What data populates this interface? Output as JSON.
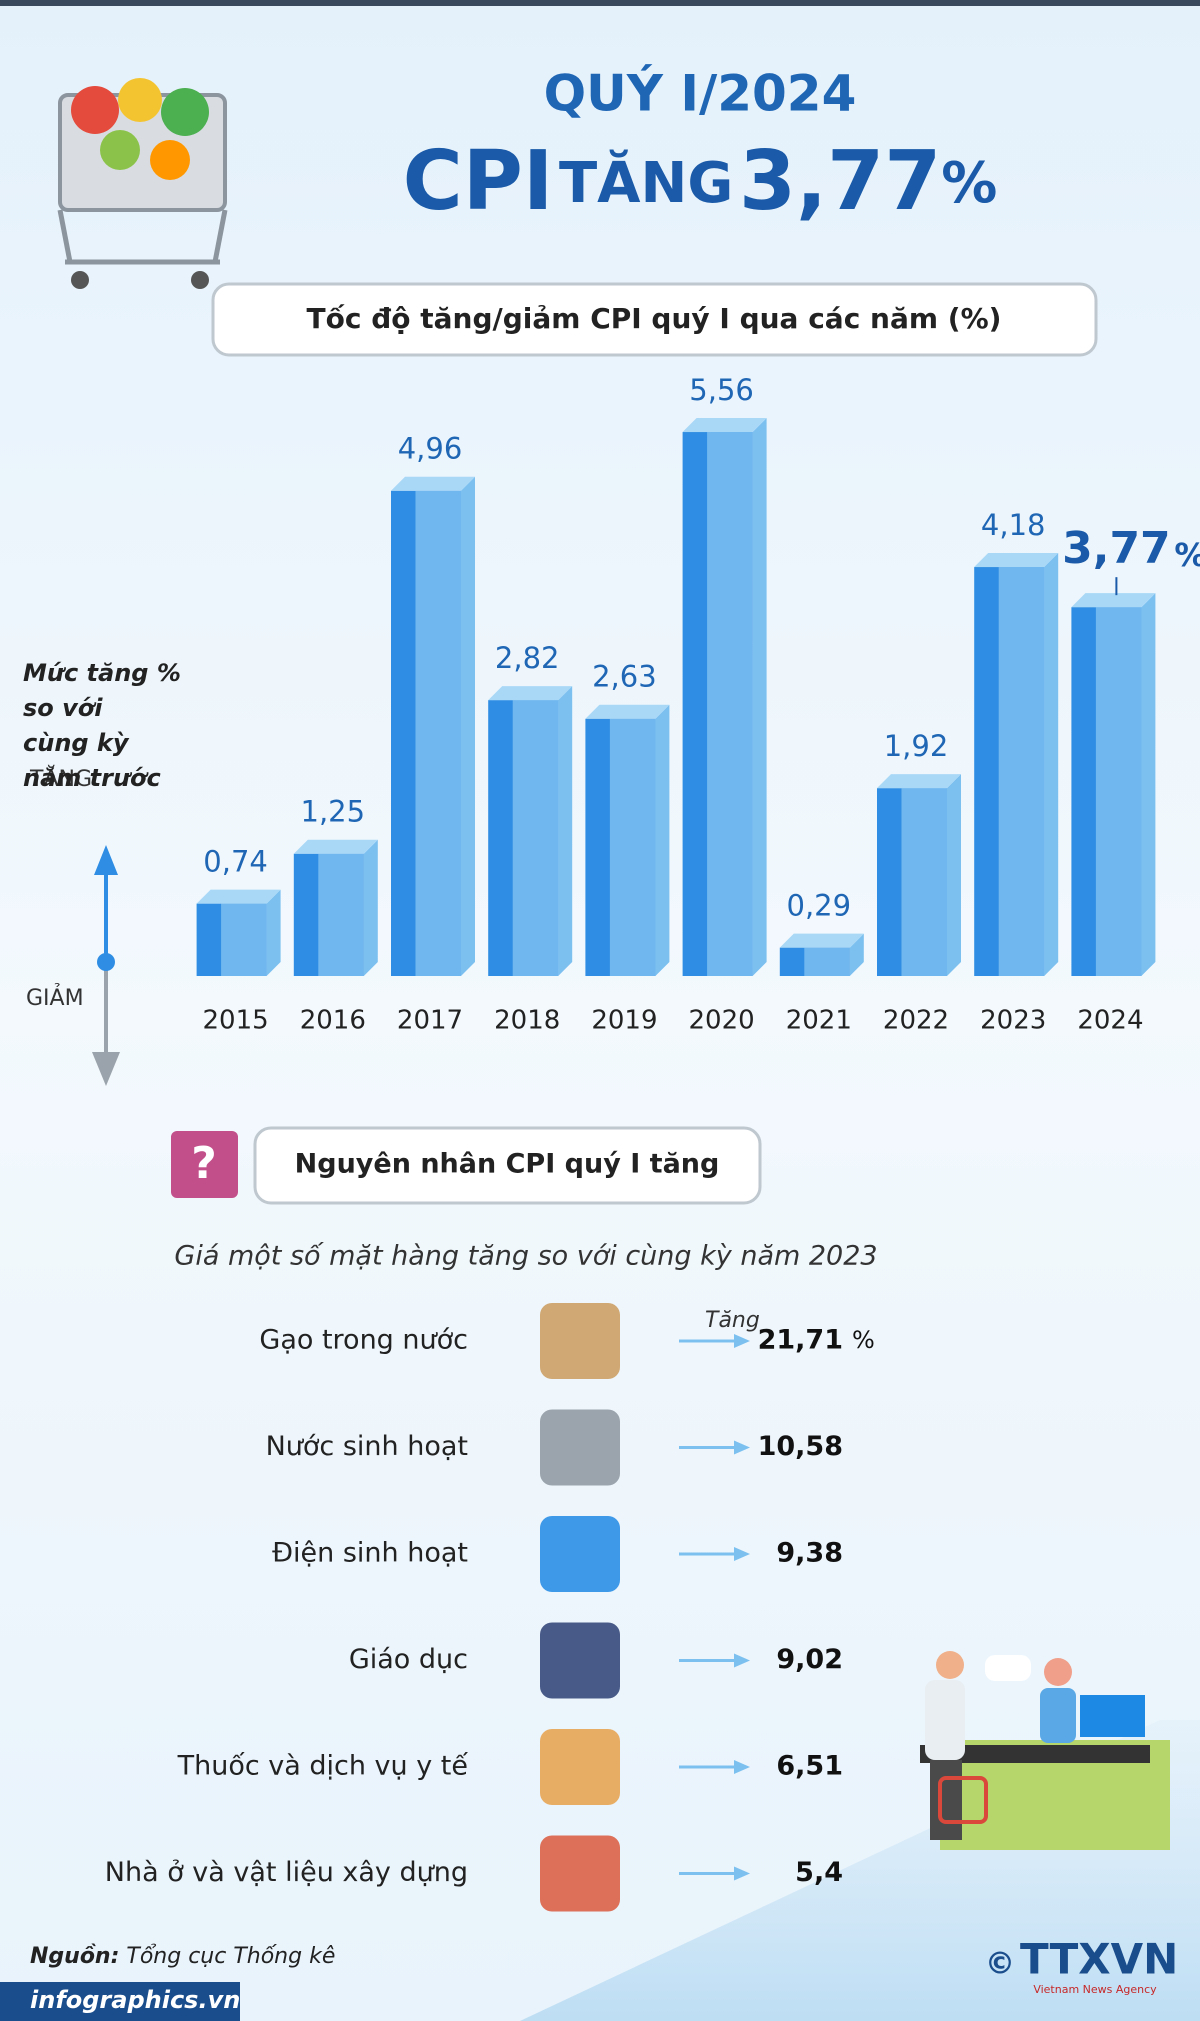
{
  "header": {
    "period": "QUÝ I/2024",
    "headline_main": "CPI",
    "headline_verb": "TĂNG",
    "headline_value": "3,77",
    "headline_unit": "%"
  },
  "chart_data": {
    "type": "bar",
    "title": "Tốc độ tăng/giảm CPI quý I qua các năm (%)",
    "y_label": [
      "Mức tăng %",
      "so với",
      "cùng kỳ",
      "năm trước"
    ],
    "up_label": "TĂNG",
    "down_label": "GIẢM",
    "categories": [
      "2015",
      "2016",
      "2017",
      "2018",
      "2019",
      "2020",
      "2021",
      "2022",
      "2023",
      "2024"
    ],
    "values": [
      0.74,
      1.25,
      4.96,
      2.82,
      2.63,
      5.56,
      0.29,
      1.92,
      4.18,
      3.77
    ],
    "value_labels": [
      "0,74",
      "1,25",
      "4,96",
      "2,82",
      "2,63",
      "5,56",
      "0,29",
      "1,92",
      "4,18",
      "3,77"
    ],
    "highlight_unit": "%",
    "color": "#2f8ee3",
    "ylim": [
      0,
      6
    ]
  },
  "causes": {
    "title": "Nguyên nhân CPI quý I tăng",
    "subtitle": "Giá một số mặt hàng tăng so với cùng kỳ năm 2023",
    "increase_label": "Tăng",
    "unit": "%",
    "items": [
      {
        "name": "Gạo trong nước",
        "value": "21,71"
      },
      {
        "name": "Nước sinh hoạt",
        "value": "10,58"
      },
      {
        "name": "Điện sinh hoạt",
        "value": "9,38"
      },
      {
        "name": "Giáo dục",
        "value": "9,02"
      },
      {
        "name": "Thuốc và dịch vụ y tế",
        "value": "6,51"
      },
      {
        "name": "Nhà ở và vật liệu xây dựng",
        "value": "5,4"
      }
    ]
  },
  "footer": {
    "source_label": "Nguồn:",
    "source": "Tổng cục Thống kê",
    "website": "infographics.vn",
    "copyright": "©",
    "agency": "TTXVN",
    "agency_sub": "Vietnam News Agency"
  }
}
